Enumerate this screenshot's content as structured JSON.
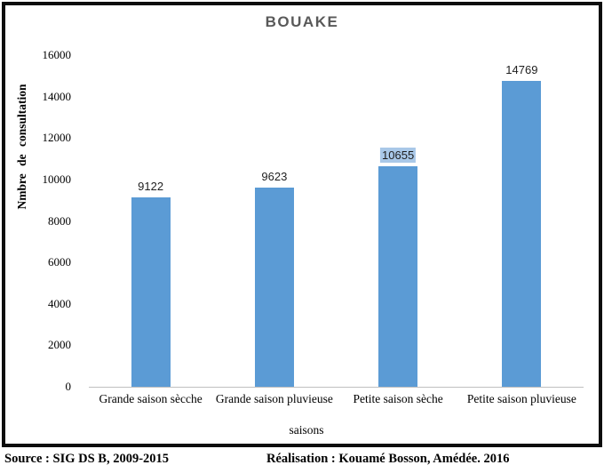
{
  "chart_data": {
    "type": "bar",
    "title": "BOUAKE",
    "categories": [
      "Grande saison sècche",
      "Grande saison pluvieuse",
      "Petite saison sèche",
      "Petite saison pluvieuse"
    ],
    "values": [
      9122,
      9623,
      10655,
      14769
    ],
    "data_labels": [
      "9122",
      "9623",
      "10655",
      "14769"
    ],
    "xlabel": "saisons",
    "ylabel": "Nmbre de consultation",
    "ylim": [
      0,
      16000
    ],
    "yticks": [
      0,
      2000,
      4000,
      6000,
      8000,
      10000,
      12000,
      14000,
      16000
    ],
    "grid": false,
    "legend": false,
    "bar_color": "#5b9bd5",
    "highlighted_label": {
      "category_index": 2,
      "highlight_color": "#a9c8e8"
    }
  },
  "colors": {
    "title": "#595959",
    "axis_line": "#bfbfbf",
    "frame_border": "#0d0d0d",
    "text": "#000000"
  },
  "footer": {
    "source": "Source : SIG DS B, 2009-2015",
    "realisation": "Réalisation : Kouamé Bosson, Amédée. 2016"
  }
}
